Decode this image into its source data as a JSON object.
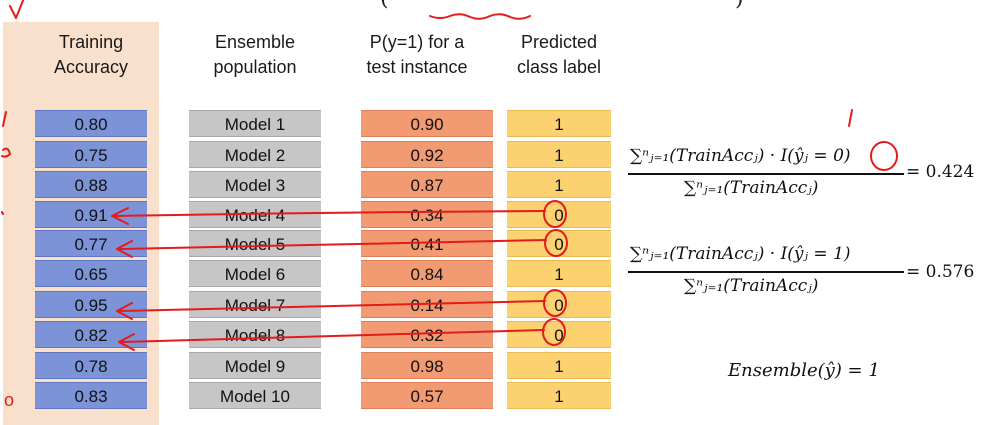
{
  "headers": {
    "accuracy": [
      "Training",
      "Accuracy"
    ],
    "population": [
      "Ensemble",
      "population"
    ],
    "probability": [
      "P(y=1) for a",
      "test instance"
    ],
    "label": [
      "Predicted",
      "class label"
    ]
  },
  "rows": [
    {
      "acc": "0.80",
      "model": "Model 1",
      "prob": "0.90",
      "pred": "1"
    },
    {
      "acc": "0.75",
      "model": "Model 2",
      "prob": "0.92",
      "pred": "1"
    },
    {
      "acc": "0.88",
      "model": "Model 3",
      "prob": "0.87",
      "pred": "1"
    },
    {
      "acc": "0.91",
      "model": "Model 4",
      "prob": "0.34",
      "pred": "0"
    },
    {
      "acc": "0.77",
      "model": "Model 5",
      "prob": "0.41",
      "pred": "0"
    },
    {
      "acc": "0.65",
      "model": "Model 6",
      "prob": "0.84",
      "pred": "1"
    },
    {
      "acc": "0.95",
      "model": "Model 7",
      "prob": "0.14",
      "pred": "0"
    },
    {
      "acc": "0.82",
      "model": "Model 8",
      "prob": "0.32",
      "pred": "0"
    },
    {
      "acc": "0.78",
      "model": "Model 9",
      "prob": "0.98",
      "pred": "1"
    },
    {
      "acc": "0.83",
      "model": "Model 10",
      "prob": "0.57",
      "pred": "1"
    }
  ],
  "equations": {
    "eq1_numerator": "∑ⁿⱼ₌₁(TrainAccⱼ) · I(ŷⱼ = 0)",
    "eq1_denominator": "∑ⁿⱼ₌₁(TrainAccⱼ)",
    "eq1_result": "= 0.424",
    "eq2_numerator": "∑ⁿⱼ₌₁(TrainAccⱼ) · I(ŷⱼ = 1)",
    "eq2_denominator": "∑ⁿⱼ₌₁(TrainAccⱼ)",
    "eq2_result": "= 0.576",
    "ensemble": "Ensemble(ŷ) = 1"
  },
  "top_formula": {
    "left_paren": "(",
    "right_paren": ")"
  },
  "annotations": {
    "ink_color": "#e41b1b",
    "bottom_mark": "o"
  }
}
